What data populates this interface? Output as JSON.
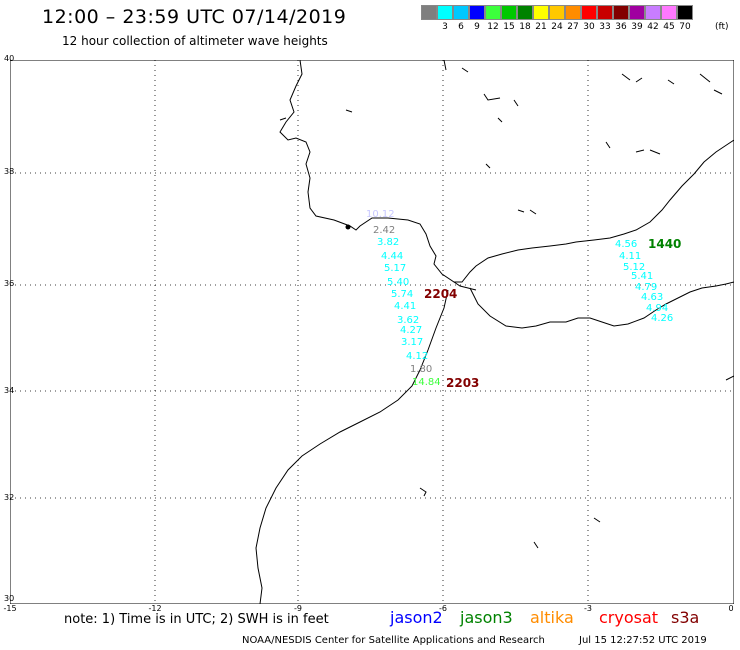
{
  "header": {
    "title": "12:00 – 23:59 UTC 07/14/2019",
    "subtitle": "12 hour collection of altimeter wave heights"
  },
  "scale": {
    "colors": [
      "#7f7f7f",
      "#00ffff",
      "#00c8ff",
      "#0000ff",
      "#3cff3c",
      "#00c800",
      "#008200",
      "#ffff00",
      "#ffc800",
      "#ff8c00",
      "#ff0000",
      "#c80000",
      "#820000",
      "#a000a0",
      "#c87dff",
      "#ff78ff",
      "#000000"
    ],
    "labels": [
      "3",
      "6",
      "9",
      "12",
      "15",
      "18",
      "21",
      "24",
      "27",
      "30",
      "33",
      "36",
      "39",
      "42",
      "45",
      "70"
    ],
    "unit": "(ft)"
  },
  "axes": {
    "lat_labels": [
      "40",
      "38",
      "36",
      "34",
      "32",
      "30"
    ],
    "lon_labels": [
      "-15",
      "-12",
      "-9",
      "-6",
      "-3",
      "0"
    ]
  },
  "tracks": {
    "west_values": [
      "10.12",
      "2.42",
      "3.82",
      "4.44",
      "5.17",
      "5.40",
      "5.74",
      "4.41",
      "3.62",
      "4.27",
      "3.17",
      "4.12",
      "1.80",
      "14.84"
    ],
    "west_colors": [
      "#c8c8ff",
      "#808080",
      "#00ffff",
      "#00ffff",
      "#00ffff",
      "#00ffff",
      "#00ffff",
      "#00ffff",
      "#00ffff",
      "#00ffff",
      "#00ffff",
      "#00ffff",
      "#808080",
      "#3cff3c"
    ],
    "east_values": [
      "4.56",
      "4.11",
      "5.12",
      "5.41",
      "4.79",
      "4.63",
      "4.94",
      "4.26"
    ],
    "times": {
      "t2204": "2204",
      "t2203": "2203",
      "t1440": "1440"
    },
    "time_colors": {
      "t2204": "#820000",
      "t2203": "#820000",
      "t1440": "#008200"
    }
  },
  "footer": {
    "note": "note: 1) Time is in UTC; 2) SWH is in feet",
    "satellites": [
      {
        "name": "jason2",
        "color": "#0000ff"
      },
      {
        "name": "jason3",
        "color": "#008200"
      },
      {
        "name": "altika",
        "color": "#ff8c00"
      },
      {
        "name": "cryosat",
        "color": "#ff0000"
      },
      {
        "name": "s3a",
        "color": "#820000"
      }
    ],
    "credit": "NOAA/NESDIS Center for Satellite Applications and Research",
    "timestamp": "Jul 15 12:27:52 UTC 2019"
  }
}
